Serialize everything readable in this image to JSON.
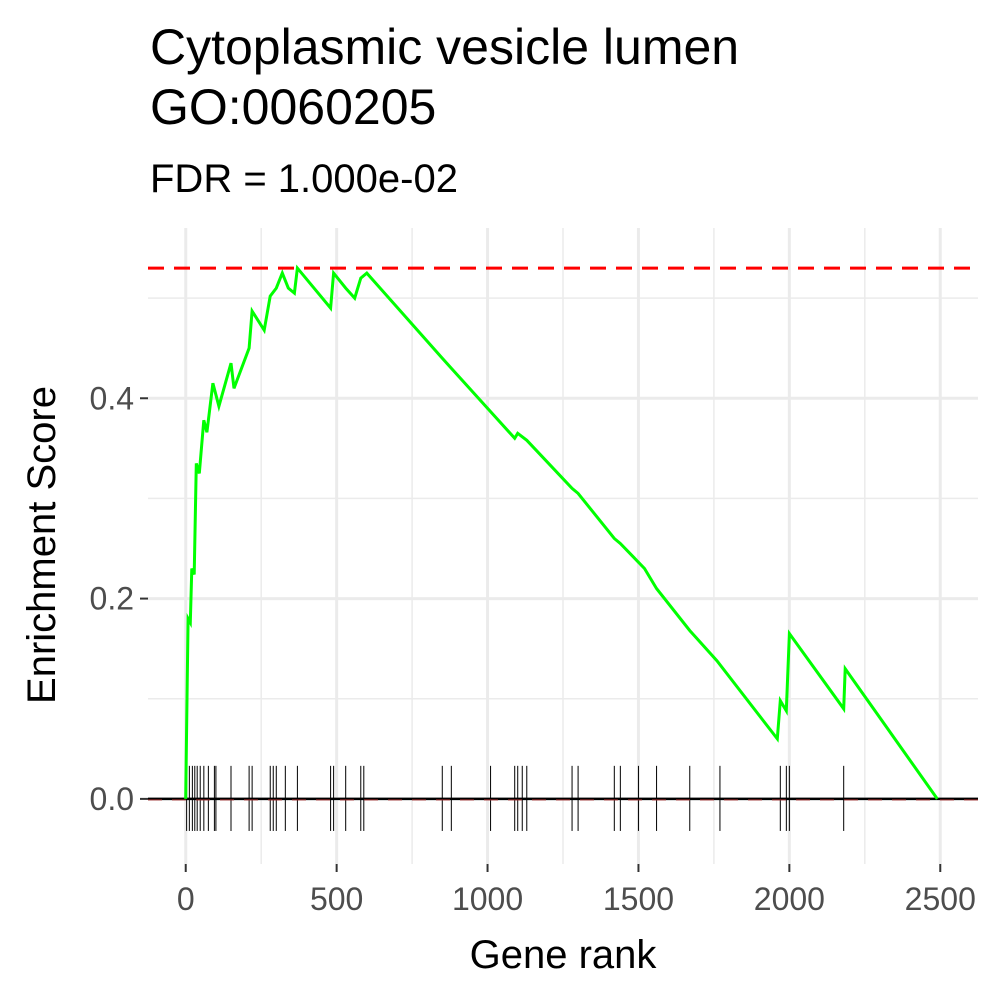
{
  "chart_data": {
    "type": "line",
    "title_line1": "Cytoplasmic vesicle lumen",
    "title_line2": "GO:0060205",
    "subtitle": "FDR = 1.000e-02",
    "xlabel": "Gene rank",
    "ylabel": "Enrichment Score",
    "xlim": [
      -125,
      2625
    ],
    "ylim": [
      -0.065,
      0.57
    ],
    "x_ticks": [
      0,
      500,
      1000,
      1500,
      2000,
      2500
    ],
    "x_tick_labels": [
      "0",
      "500",
      "1000",
      "1500",
      "2000",
      "2500"
    ],
    "y_ticks": [
      0.0,
      0.2,
      0.4
    ],
    "y_tick_labels": [
      "0.0",
      "0.2",
      "0.4"
    ],
    "grid": true,
    "max_es": 0.53,
    "colors": {
      "curve": "#00ff00",
      "max_line": "#ff0000",
      "zero_line": "#000000",
      "rug": "#000000",
      "grid": "#ebebeb"
    },
    "series": [
      {
        "x": [
          0,
          5,
          8,
          15,
          20,
          28,
          35,
          45,
          60,
          70,
          90,
          110,
          150,
          160,
          210,
          220,
          260,
          280,
          300,
          320,
          340,
          360,
          370,
          480,
          490,
          530,
          560,
          580,
          600,
          850,
          880,
          1000,
          1090,
          1100,
          1130,
          1280,
          1300,
          1420,
          1440,
          1520,
          1560,
          1670,
          1760,
          1960,
          1970,
          1990,
          1995,
          2000,
          2180,
          2185,
          2490
        ],
        "y": [
          0.0,
          0.115,
          0.18,
          0.176,
          0.23,
          0.224,
          0.335,
          0.325,
          0.378,
          0.366,
          0.415,
          0.392,
          0.435,
          0.41,
          0.45,
          0.487,
          0.468,
          0.502,
          0.51,
          0.525,
          0.51,
          0.505,
          0.53,
          0.49,
          0.525,
          0.51,
          0.5,
          0.52,
          0.525,
          0.44,
          0.43,
          0.39,
          0.36,
          0.365,
          0.358,
          0.31,
          0.305,
          0.26,
          0.255,
          0.23,
          0.21,
          0.168,
          0.138,
          0.06,
          0.098,
          0.088,
          0.128,
          0.165,
          0.09,
          0.13,
          0.0
        ]
      }
    ],
    "gene_hits": [
      3,
      12,
      22,
      30,
      38,
      48,
      60,
      75,
      95,
      100,
      150,
      210,
      220,
      280,
      290,
      300,
      330,
      370,
      480,
      490,
      530,
      580,
      590,
      850,
      880,
      1010,
      1090,
      1100,
      1115,
      1130,
      1280,
      1300,
      1420,
      1440,
      1500,
      1560,
      1670,
      1770,
      1970,
      1990,
      2000,
      2180
    ]
  }
}
